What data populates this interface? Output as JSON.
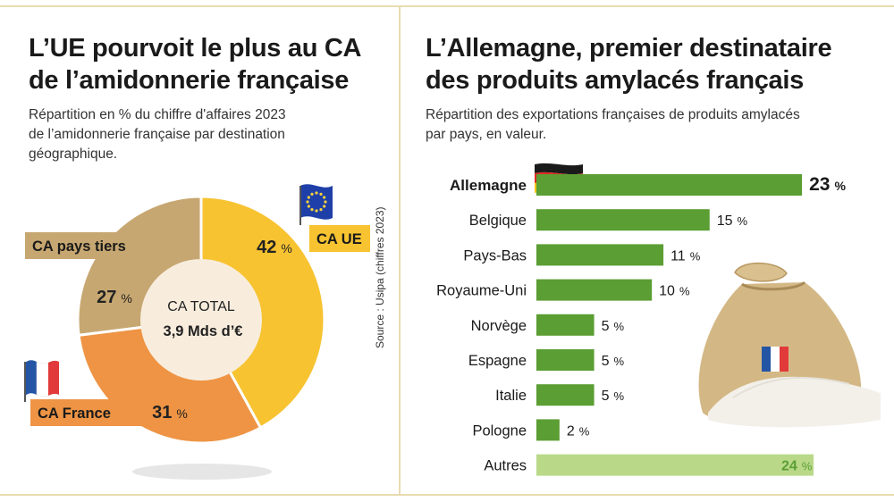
{
  "left": {
    "title_line1": "L’UE pourvoit le plus au CA",
    "title_line2": "de l’amidonnerie française",
    "subtitle_line1": "Répartition en % du chiffre d'affaires 2023",
    "subtitle_line2": "de l’amidonnerie française par destination",
    "subtitle_line3": "géographique.",
    "center_label": "CA TOTAL",
    "center_value": "3,9 Mds d’€"
  },
  "right": {
    "title_line1": "L’Allemagne, premier destinataire",
    "title_line2": "des produits amylacés français",
    "subtitle_line1": "Répartition des exportations françaises de produits amylacés",
    "subtitle_line2": "par pays, en valeur."
  },
  "source": "Source : Usipa (chiffres 2023)",
  "colors": {
    "eu": "#f7c331",
    "france": "#ee9444",
    "third": "#c7a771",
    "bar": "#5b9e33",
    "bar_other": "#b9d989",
    "label_other": "#5b9e33"
  },
  "icons": [
    "eu-flag-icon",
    "french-flag-icon",
    "german-flag-icon",
    "flour-sack-icon"
  ],
  "chart_data": [
    {
      "type": "pie",
      "variant": "donut",
      "slices": [
        {
          "label": "CA UE",
          "value": 42,
          "display": "42 %"
        },
        {
          "label": "CA France",
          "value": 31,
          "display": "31 %"
        },
        {
          "label": "CA pays tiers",
          "value": 27,
          "display": "27 %"
        }
      ],
      "unit": "%"
    },
    {
      "type": "bar",
      "orientation": "horizontal",
      "categories": [
        "Allemagne",
        "Belgique",
        "Pays-Bas",
        "Royaume-Uni",
        "Norvège",
        "Espagne",
        "Italie",
        "Pologne",
        "Autres"
      ],
      "values": [
        23,
        15,
        11,
        10,
        5,
        5,
        5,
        2,
        24
      ],
      "labels": [
        "23 %",
        "15 %",
        "11 %",
        "10 %",
        "5 %",
        "5 %",
        "5 %",
        "2 %",
        "24 %"
      ],
      "unit": "%",
      "xlim": [
        0,
        24
      ]
    }
  ]
}
